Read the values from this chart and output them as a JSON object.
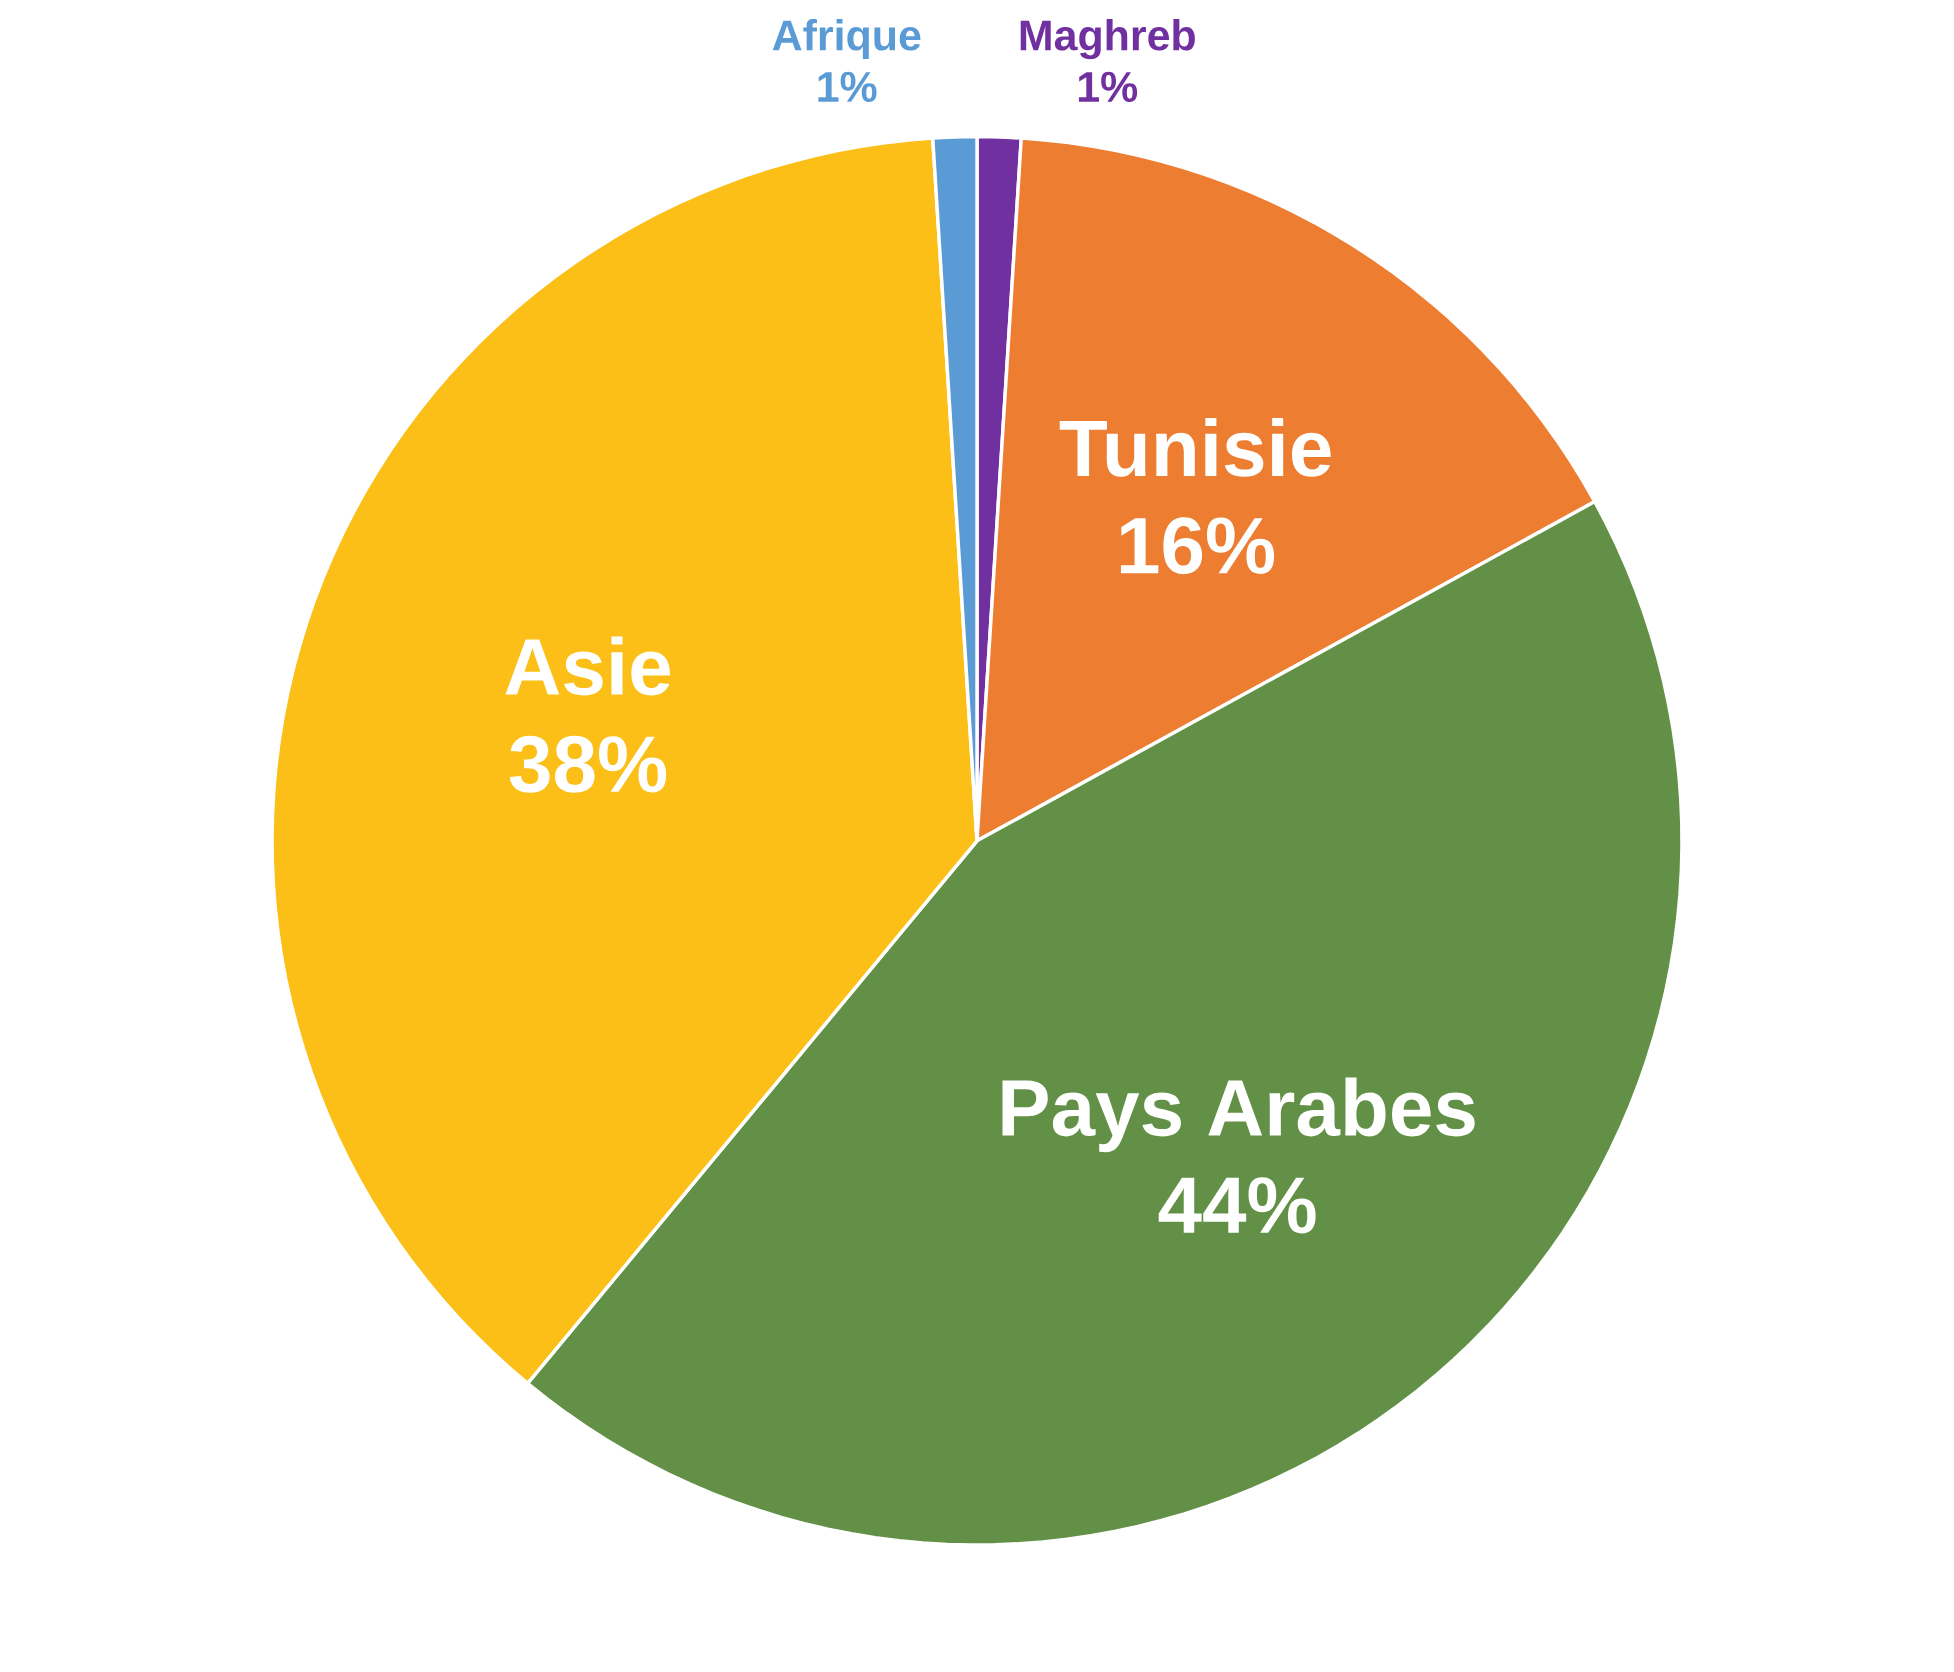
{
  "chart_data": {
    "type": "pie",
    "categories": [
      "Maghreb",
      "Tunisie",
      "Pays Arabes",
      "Asie",
      "Afrique"
    ],
    "values": [
      1,
      16,
      44,
      38,
      1
    ],
    "value_labels": [
      "1%",
      "16%",
      "44%",
      "38%",
      "1%"
    ],
    "colors": [
      "#7030a0",
      "#ed7d31",
      "#629046",
      "#fbbf17",
      "#5b9bd5"
    ],
    "legend": false
  }
}
